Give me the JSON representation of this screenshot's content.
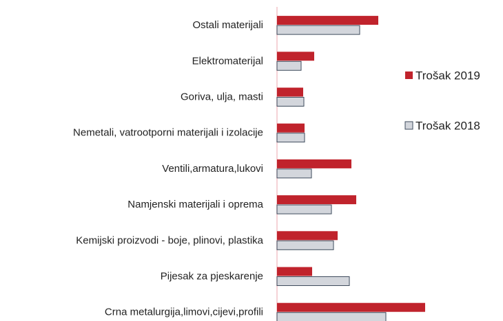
{
  "chart_data": {
    "type": "hbar",
    "categories": [
      "Ostali materijali",
      "Elektromaterijal",
      "Goriva, ulja, masti",
      "Nemetali, vatrootporni materijali i izolacije",
      "Ventili,armatura,lukovi",
      "Namjenski materijali i oprema",
      "Kemijski proizvodi - boje, plinovi, plastika",
      "Pijesak za pjeskarenje",
      "Crna metalurgija,limovi,cijevi,profili"
    ],
    "series": [
      {
        "name": "Trošak 2019",
        "color": "#c0232c",
        "stroke": "#c0232c",
        "values": [
          147,
          54,
          38,
          40,
          108,
          115,
          88,
          51,
          215
        ]
      },
      {
        "name": "Trošak 2018",
        "color": "#d3d6dc",
        "stroke": "#3e4b5c",
        "values": [
          120,
          35,
          39,
          40,
          50,
          79,
          82,
          105,
          158
        ]
      }
    ],
    "xlim": [
      0,
      230
    ],
    "legend": "right"
  }
}
